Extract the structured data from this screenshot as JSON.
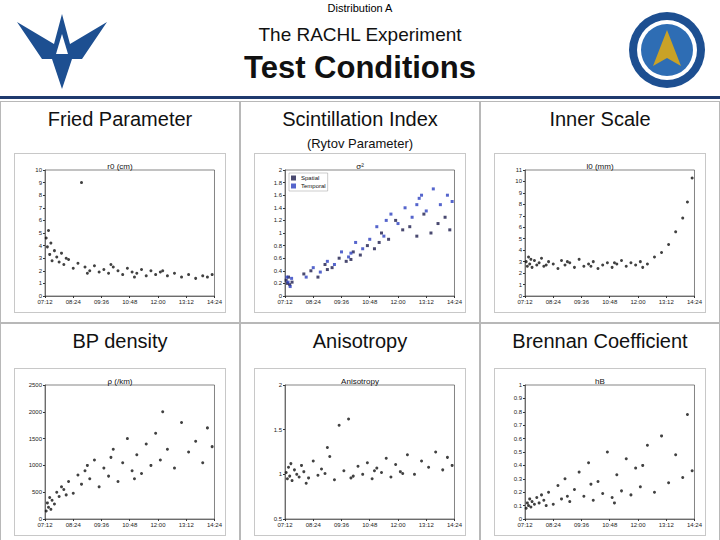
{
  "page": {
    "banner": "Distribution A",
    "title": "The RACHL Experiment",
    "subtitle": "Test Conditions"
  },
  "chart_data": [
    {
      "type": "scatter",
      "title": "Fried Parameter",
      "plot_title": "r0 (cm)",
      "x": [
        7.25,
        7.3,
        7.35,
        7.4,
        7.45,
        7.5,
        7.6,
        7.7,
        7.8,
        7.9,
        8.0,
        8.2,
        8.4,
        8.6,
        8.75,
        8.9,
        9.1,
        9.3,
        9.5,
        9.7,
        9.9,
        10.1,
        10.3,
        10.5,
        10.7,
        10.9,
        11.1,
        11.3,
        11.5,
        11.7,
        11.9,
        12.1,
        12.4,
        12.7,
        13.0,
        13.3,
        13.6,
        13.9,
        14.1,
        14.3,
        8.1,
        9.0,
        10.0,
        11.0,
        12.2
      ],
      "values": [
        4.6,
        3.9,
        5.2,
        3.3,
        4.2,
        2.8,
        3.6,
        3.1,
        2.7,
        3.4,
        2.5,
        2.9,
        2.2,
        2.6,
        9.0,
        2.3,
        2.0,
        2.4,
        1.9,
        2.1,
        1.8,
        2.3,
        2.0,
        1.7,
        2.2,
        1.9,
        1.8,
        2.1,
        1.6,
        2.0,
        1.7,
        1.9,
        1.6,
        1.8,
        1.5,
        1.7,
        1.4,
        1.6,
        1.5,
        1.7,
        3.0,
        1.8,
        2.5,
        1.5,
        2.0
      ],
      "color": "#111111",
      "marker": "circle",
      "xlim": [
        7.2,
        14.4
      ],
      "xticks": [
        {
          "value": 7.2,
          "label": "07:12"
        },
        {
          "value": 8.4,
          "label": "08:24"
        },
        {
          "value": 9.6,
          "label": "09:36"
        },
        {
          "value": 10.8,
          "label": "10:48"
        },
        {
          "value": 12.0,
          "label": "12:00"
        },
        {
          "value": 13.2,
          "label": "13:12"
        },
        {
          "value": 14.4,
          "label": "14:24"
        }
      ],
      "ylim": [
        0,
        10
      ],
      "yticks": [
        0,
        1,
        2,
        3,
        4,
        5,
        6,
        7,
        8,
        9,
        10
      ],
      "grid": false
    },
    {
      "type": "scatter",
      "title": "Scintillation Index",
      "subtitle": "(Rytov Parameter)",
      "plot_title": "σ²",
      "series": [
        {
          "name": "Spatial",
          "color": "#1c1c4c",
          "marker": "square",
          "x": [
            7.25,
            7.3,
            7.35,
            7.4,
            7.5,
            8.0,
            8.3,
            8.6,
            8.9,
            9.2,
            9.5,
            9.8,
            10.1,
            10.4,
            10.7,
            11.0,
            11.3,
            11.6,
            11.9,
            12.2,
            12.5,
            12.8,
            13.1,
            13.4,
            13.7,
            14.0,
            14.2,
            9.0,
            10.0,
            11.2
          ],
          "values": [
            0.25,
            0.2,
            0.3,
            0.18,
            0.22,
            0.35,
            0.4,
            0.3,
            0.5,
            0.45,
            0.6,
            0.55,
            0.7,
            0.65,
            0.8,
            0.75,
            1.0,
            0.9,
            1.2,
            1.05,
            1.1,
            0.95,
            1.3,
            1.0,
            1.15,
            1.25,
            1.05,
            0.42,
            0.58,
            0.85
          ]
        },
        {
          "name": "Temporal",
          "color": "#2b3fbf",
          "marker": "square",
          "x": [
            7.28,
            7.33,
            7.42,
            7.48,
            8.1,
            8.4,
            8.7,
            9.0,
            9.3,
            9.6,
            9.9,
            10.2,
            10.5,
            10.8,
            11.1,
            11.4,
            11.7,
            12.0,
            12.3,
            12.6,
            12.9,
            13.2,
            13.5,
            13.8,
            14.1,
            14.3,
            10.0,
            11.5,
            12.8,
            13.0
          ],
          "values": [
            0.3,
            0.22,
            0.15,
            0.28,
            0.3,
            0.45,
            0.38,
            0.55,
            0.5,
            0.7,
            0.62,
            0.85,
            0.75,
            0.9,
            1.1,
            0.95,
            1.3,
            1.15,
            1.4,
            1.25,
            1.55,
            1.35,
            1.7,
            1.45,
            1.6,
            1.5,
            0.68,
            1.2,
            1.45,
            1.6
          ]
        }
      ],
      "legend": "upper left",
      "xlim": [
        7.2,
        14.4
      ],
      "xticks": [
        {
          "value": 7.2,
          "label": "07:12"
        },
        {
          "value": 8.4,
          "label": "08:24"
        },
        {
          "value": 9.6,
          "label": "09:36"
        },
        {
          "value": 10.8,
          "label": "10:48"
        },
        {
          "value": 12.0,
          "label": "12:00"
        },
        {
          "value": 13.2,
          "label": "13:12"
        },
        {
          "value": 14.4,
          "label": "14:24"
        }
      ],
      "ylim": [
        0,
        2
      ],
      "yticks": [
        0,
        0.2,
        0.4,
        0.6,
        0.8,
        1,
        1.2,
        1.4,
        1.6,
        1.8,
        2
      ],
      "grid": false
    },
    {
      "type": "scatter",
      "title": "Inner Scale",
      "plot_title": "l0 (mm)",
      "x": [
        7.25,
        7.3,
        7.35,
        7.4,
        7.45,
        7.5,
        7.6,
        7.7,
        7.8,
        7.9,
        8.0,
        8.2,
        8.4,
        8.6,
        8.75,
        8.9,
        9.1,
        9.3,
        9.5,
        9.7,
        9.9,
        10.1,
        10.3,
        10.5,
        10.7,
        10.9,
        11.1,
        11.3,
        11.5,
        11.7,
        11.9,
        12.1,
        12.4,
        12.7,
        13.0,
        13.3,
        13.6,
        13.9,
        14.1,
        14.3,
        8.1,
        9.0,
        10.0,
        11.0,
        12.2
      ],
      "values": [
        3.0,
        2.6,
        3.4,
        2.8,
        3.2,
        2.5,
        3.1,
        2.7,
        2.9,
        3.3,
        2.6,
        3.0,
        2.8,
        2.4,
        3.1,
        2.7,
        2.9,
        2.5,
        3.2,
        2.6,
        2.8,
        3.0,
        2.4,
        2.7,
        2.9,
        2.5,
        2.8,
        3.1,
        2.6,
        2.9,
        2.7,
        3.0,
        2.8,
        3.4,
        3.8,
        4.5,
        5.6,
        6.8,
        8.2,
        10.3,
        2.7,
        3.0,
        2.6,
        2.9,
        2.5
      ],
      "color": "#111111",
      "marker": "circle",
      "xlim": [
        7.2,
        14.4
      ],
      "xticks": [
        {
          "value": 7.2,
          "label": "07:12"
        },
        {
          "value": 8.4,
          "label": "08:24"
        },
        {
          "value": 9.6,
          "label": "09:36"
        },
        {
          "value": 10.8,
          "label": "10:48"
        },
        {
          "value": 12.0,
          "label": "12:00"
        },
        {
          "value": 13.2,
          "label": "13:12"
        },
        {
          "value": 14.4,
          "label": "14:24"
        }
      ],
      "ylim": [
        0,
        11
      ],
      "yticks": [
        0,
        1,
        2,
        3,
        4,
        5,
        6,
        7,
        8,
        9,
        10,
        11
      ],
      "grid": false
    },
    {
      "type": "scatter",
      "title": "BP density",
      "plot_title": "ρ (/km)",
      "x": [
        7.25,
        7.3,
        7.35,
        7.4,
        7.45,
        7.5,
        7.6,
        7.7,
        7.8,
        7.9,
        8.0,
        8.2,
        8.4,
        8.6,
        8.75,
        8.9,
        9.1,
        9.3,
        9.5,
        9.7,
        9.9,
        10.1,
        10.3,
        10.5,
        10.7,
        10.9,
        11.1,
        11.3,
        11.5,
        11.7,
        11.9,
        12.1,
        12.4,
        12.7,
        13.0,
        13.3,
        13.6,
        13.9,
        14.1,
        14.3,
        8.1,
        9.0,
        10.0,
        11.0,
        12.2
      ],
      "values": [
        150,
        300,
        220,
        400,
        180,
        350,
        280,
        500,
        420,
        600,
        550,
        700,
        480,
        820,
        650,
        900,
        750,
        1100,
        600,
        950,
        800,
        1300,
        700,
        1050,
        1500,
        900,
        1200,
        850,
        1400,
        1000,
        1600,
        1100,
        1300,
        950,
        1800,
        1250,
        1450,
        1050,
        1700,
        1350,
        450,
        1000,
        1150,
        750,
        2000
      ],
      "color": "#111111",
      "marker": "circle",
      "xlim": [
        7.2,
        14.4
      ],
      "xticks": [
        {
          "value": 7.2,
          "label": "07:12"
        },
        {
          "value": 8.4,
          "label": "08:24"
        },
        {
          "value": 9.6,
          "label": "09:36"
        },
        {
          "value": 10.8,
          "label": "10:48"
        },
        {
          "value": 12.0,
          "label": "12:00"
        },
        {
          "value": 13.2,
          "label": "13:12"
        },
        {
          "value": 14.4,
          "label": "14:24"
        }
      ],
      "ylim": [
        0,
        2500
      ],
      "yticks": [
        0,
        500,
        1000,
        1500,
        2000,
        2500
      ],
      "grid": false
    },
    {
      "type": "scatter",
      "title": "Anisotropy",
      "plot_title": "Anisotropy",
      "x": [
        7.25,
        7.3,
        7.35,
        7.4,
        7.45,
        7.5,
        7.6,
        7.7,
        7.8,
        7.9,
        8.0,
        8.2,
        8.4,
        8.6,
        8.75,
        8.9,
        9.1,
        9.3,
        9.5,
        9.7,
        9.9,
        10.1,
        10.3,
        10.5,
        10.7,
        10.9,
        11.1,
        11.3,
        11.5,
        11.7,
        11.9,
        12.1,
        12.4,
        12.7,
        13.0,
        13.3,
        13.6,
        13.9,
        14.1,
        14.3,
        8.1,
        9.0,
        10.0,
        11.0,
        12.2
      ],
      "values": [
        1.02,
        0.95,
        1.08,
        0.98,
        1.12,
        0.93,
        1.05,
        1.0,
        0.97,
        1.1,
        1.03,
        0.96,
        1.15,
        0.99,
        1.06,
        1.01,
        1.2,
        0.94,
        1.55,
        1.04,
        1.62,
        0.98,
        1.09,
        1.0,
        1.13,
        0.95,
        1.07,
        1.02,
        1.18,
        0.97,
        1.11,
        1.03,
        1.22,
        1.0,
        1.15,
        1.08,
        1.25,
        1.05,
        1.19,
        1.1,
        0.9,
        1.3,
        0.96,
        1.04,
        1.01
      ],
      "color": "#111111",
      "marker": "circle",
      "xlim": [
        7.2,
        14.4
      ],
      "xticks": [
        {
          "value": 7.2,
          "label": "07:12"
        },
        {
          "value": 8.4,
          "label": "08:24"
        },
        {
          "value": 9.6,
          "label": "09:36"
        },
        {
          "value": 10.8,
          "label": "10:48"
        },
        {
          "value": 12.0,
          "label": "12:00"
        },
        {
          "value": 13.2,
          "label": "13:12"
        },
        {
          "value": 14.4,
          "label": "14:24"
        }
      ],
      "ylim": [
        0.5,
        2
      ],
      "yticks": [
        0.5,
        1,
        1.5,
        2
      ],
      "grid": false
    },
    {
      "type": "scatter",
      "title": "Brennan Coefficient",
      "plot_title": "hB",
      "x": [
        7.25,
        7.3,
        7.35,
        7.4,
        7.45,
        7.5,
        7.6,
        7.7,
        7.8,
        7.9,
        8.0,
        8.2,
        8.4,
        8.6,
        8.75,
        8.9,
        9.1,
        9.3,
        9.5,
        9.7,
        9.9,
        10.1,
        10.3,
        10.5,
        10.7,
        10.9,
        11.1,
        11.3,
        11.5,
        11.7,
        11.9,
        12.1,
        12.4,
        12.7,
        13.0,
        13.3,
        13.6,
        13.9,
        14.1,
        14.3,
        8.1,
        9.0,
        10.0,
        11.0,
        12.2
      ],
      "values": [
        0.08,
        0.12,
        0.1,
        0.15,
        0.09,
        0.13,
        0.11,
        0.16,
        0.12,
        0.18,
        0.14,
        0.2,
        0.11,
        0.25,
        0.15,
        0.3,
        0.13,
        0.22,
        0.35,
        0.17,
        0.42,
        0.14,
        0.28,
        0.19,
        0.5,
        0.16,
        0.33,
        0.21,
        0.45,
        0.18,
        0.38,
        0.24,
        0.55,
        0.2,
        0.62,
        0.27,
        0.48,
        0.31,
        0.78,
        0.36,
        0.1,
        0.17,
        0.26,
        0.12,
        0.4
      ],
      "color": "#111111",
      "marker": "circle",
      "xlim": [
        7.2,
        14.4
      ],
      "xticks": [
        {
          "value": 7.2,
          "label": "07:12"
        },
        {
          "value": 8.4,
          "label": "08:24"
        },
        {
          "value": 9.6,
          "label": "09:36"
        },
        {
          "value": 10.8,
          "label": "10:48"
        },
        {
          "value": 12.0,
          "label": "12:00"
        },
        {
          "value": 13.2,
          "label": "13:12"
        },
        {
          "value": 14.4,
          "label": "14:24"
        }
      ],
      "ylim": [
        0,
        1
      ],
      "yticks": [
        0,
        0.1,
        0.2,
        0.3,
        0.4,
        0.5,
        0.6,
        0.7,
        0.8,
        0.9,
        1
      ],
      "grid": false
    }
  ]
}
